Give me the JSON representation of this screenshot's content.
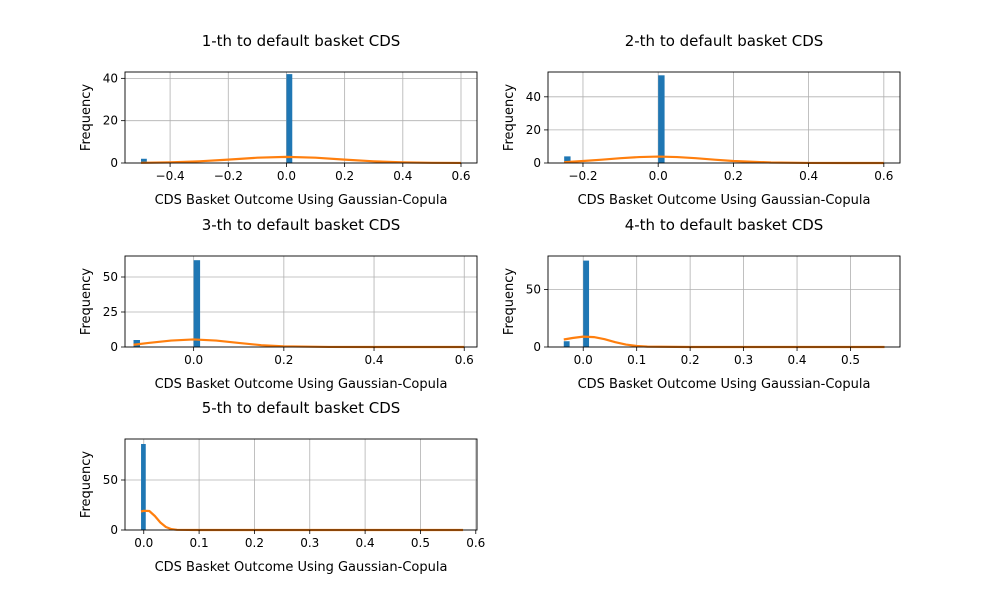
{
  "chart_data": [
    {
      "type": "bar",
      "title": "1-th to default basket CDS",
      "xlabel": "CDS Basket Outcome Using Gaussian-Copula",
      "ylabel": "Frequency",
      "xlim": [
        -0.555,
        0.655
      ],
      "ylim": [
        0,
        43
      ],
      "xticks": [
        -0.4,
        -0.2,
        0.0,
        0.2,
        0.4,
        0.6
      ],
      "xtick_labels": [
        "−0.4",
        "−0.2",
        "0.0",
        "0.2",
        "0.4",
        "0.6"
      ],
      "yticks": [
        0,
        20,
        40
      ],
      "ytick_labels": [
        "0",
        "20",
        "40"
      ],
      "grid": true,
      "histogram": {
        "bins": [
          [
            -0.5,
            2
          ],
          [
            0.0,
            42
          ]
        ],
        "bin_width": 0.02,
        "color": "#1f77b4"
      },
      "density_curve": {
        "color": "#ff7f0e",
        "x": [
          -0.5,
          -0.4,
          -0.3,
          -0.2,
          -0.1,
          0.0,
          0.1,
          0.2,
          0.3,
          0.4,
          0.5,
          0.6
        ],
        "y": [
          0.1,
          0.3,
          0.8,
          1.6,
          2.5,
          2.9,
          2.5,
          1.6,
          0.8,
          0.3,
          0.1,
          0.03
        ]
      }
    },
    {
      "type": "bar",
      "title": "2-th to default basket CDS",
      "xlabel": "CDS Basket Outcome Using Gaussian-Copula",
      "ylabel": "Frequency",
      "xlim": [
        -0.293,
        0.643
      ],
      "ylim": [
        0,
        55
      ],
      "xticks": [
        -0.2,
        0.0,
        0.2,
        0.4,
        0.6
      ],
      "xtick_labels": [
        "−0.2",
        "0.0",
        "0.2",
        "0.4",
        "0.6"
      ],
      "yticks": [
        0,
        20,
        40
      ],
      "ytick_labels": [
        "0",
        "20",
        "40"
      ],
      "grid": true,
      "histogram": {
        "bins": [
          [
            -0.25,
            4
          ],
          [
            0.0,
            53
          ]
        ],
        "bin_width": 0.017,
        "color": "#1f77b4"
      },
      "density_curve": {
        "color": "#ff7f0e",
        "x": [
          -0.25,
          -0.2,
          -0.15,
          -0.1,
          -0.05,
          0.0,
          0.05,
          0.1,
          0.15,
          0.2,
          0.3,
          0.4,
          0.5,
          0.6
        ],
        "y": [
          0.5,
          1.2,
          2.0,
          2.9,
          3.6,
          3.9,
          3.6,
          2.9,
          2.0,
          1.2,
          0.3,
          0.05,
          0.01,
          0.0
        ]
      }
    },
    {
      "type": "bar",
      "title": "3-th to default basket CDS",
      "xlabel": "CDS Basket Outcome Using Gaussian-Copula",
      "ylabel": "Frequency",
      "xlim": [
        -0.1522,
        0.6283
      ],
      "ylim": [
        0,
        65
      ],
      "xticks": [
        0.0,
        0.2,
        0.4,
        0.6
      ],
      "xtick_labels": [
        "0.0",
        "0.2",
        "0.4",
        "0.6"
      ],
      "yticks": [
        0,
        25,
        50
      ],
      "ytick_labels": [
        "0",
        "25",
        "50"
      ],
      "grid": true,
      "histogram": {
        "bins": [
          [
            -0.1333,
            5
          ],
          [
            0.0,
            62
          ]
        ],
        "bin_width": 0.0143,
        "color": "#1f77b4"
      },
      "density_curve": {
        "color": "#ff7f0e",
        "x": [
          -0.1333,
          -0.1,
          -0.05,
          0.0,
          0.05,
          0.1,
          0.15,
          0.2,
          0.3,
          0.4,
          0.5,
          0.6
        ],
        "y": [
          1.6,
          2.9,
          4.6,
          5.4,
          4.6,
          2.9,
          1.3,
          0.5,
          0.05,
          0.0,
          0.0,
          0.0
        ]
      }
    },
    {
      "type": "bar",
      "title": "4-th to default basket CDS",
      "xlabel": "CDS Basket Outcome Using Gaussian-Copula",
      "ylabel": "Frequency",
      "xlim": [
        -0.0659,
        0.5926
      ],
      "ylim": [
        0,
        79
      ],
      "xticks": [
        0.0,
        0.1,
        0.2,
        0.3,
        0.4,
        0.5
      ],
      "xtick_labels": [
        "0.0",
        "0.1",
        "0.2",
        "0.3",
        "0.4",
        "0.5"
      ],
      "yticks": [
        0,
        50
      ],
      "ytick_labels": [
        "0",
        "50"
      ],
      "grid": true,
      "histogram": {
        "bins": [
          [
            -0.0364,
            5
          ],
          [
            0.0,
            75
          ]
        ],
        "bin_width": 0.0109,
        "color": "#1f77b4"
      },
      "density_curve": {
        "color": "#ff7f0e",
        "x": [
          -0.0364,
          -0.02,
          0.0,
          0.02,
          0.04,
          0.06,
          0.08,
          0.1,
          0.12,
          0.2,
          0.3,
          0.4,
          0.5,
          0.5636
        ],
        "y": [
          6.5,
          7.8,
          9.0,
          8.6,
          6.8,
          4.2,
          2.1,
          0.9,
          0.3,
          0.0,
          0.0,
          0.0,
          0.0,
          0.0
        ]
      }
    },
    {
      "type": "bar",
      "title": "5-th to default basket CDS",
      "xlabel": "CDS Basket Outcome Using Gaussian-Copula",
      "ylabel": "Frequency",
      "xlim": [
        -0.0339,
        0.6022
      ],
      "ylim": [
        0,
        91
      ],
      "xticks": [
        0.0,
        0.1,
        0.2,
        0.3,
        0.4,
        0.5,
        0.6
      ],
      "xtick_labels": [
        "0.0",
        "0.1",
        "0.2",
        "0.3",
        "0.4",
        "0.5",
        "0.6"
      ],
      "yticks": [
        0,
        50
      ],
      "ytick_labels": [
        "0",
        "50"
      ],
      "grid": true,
      "histogram": {
        "bins": [
          [
            -0.0049,
            86
          ]
        ],
        "bin_width": 0.0085,
        "color": "#1f77b4"
      },
      "density_curve": {
        "color": "#ff7f0e",
        "x": [
          -0.0049,
          0.0,
          0.01,
          0.02,
          0.03,
          0.04,
          0.05,
          0.06,
          0.1,
          0.2,
          0.3,
          0.4,
          0.5,
          0.577
        ],
        "y": [
          18.5,
          19.2,
          19.0,
          14.0,
          7.5,
          3.0,
          0.9,
          0.2,
          0.0,
          0.0,
          0.0,
          0.0,
          0.0,
          0.0
        ]
      }
    }
  ]
}
